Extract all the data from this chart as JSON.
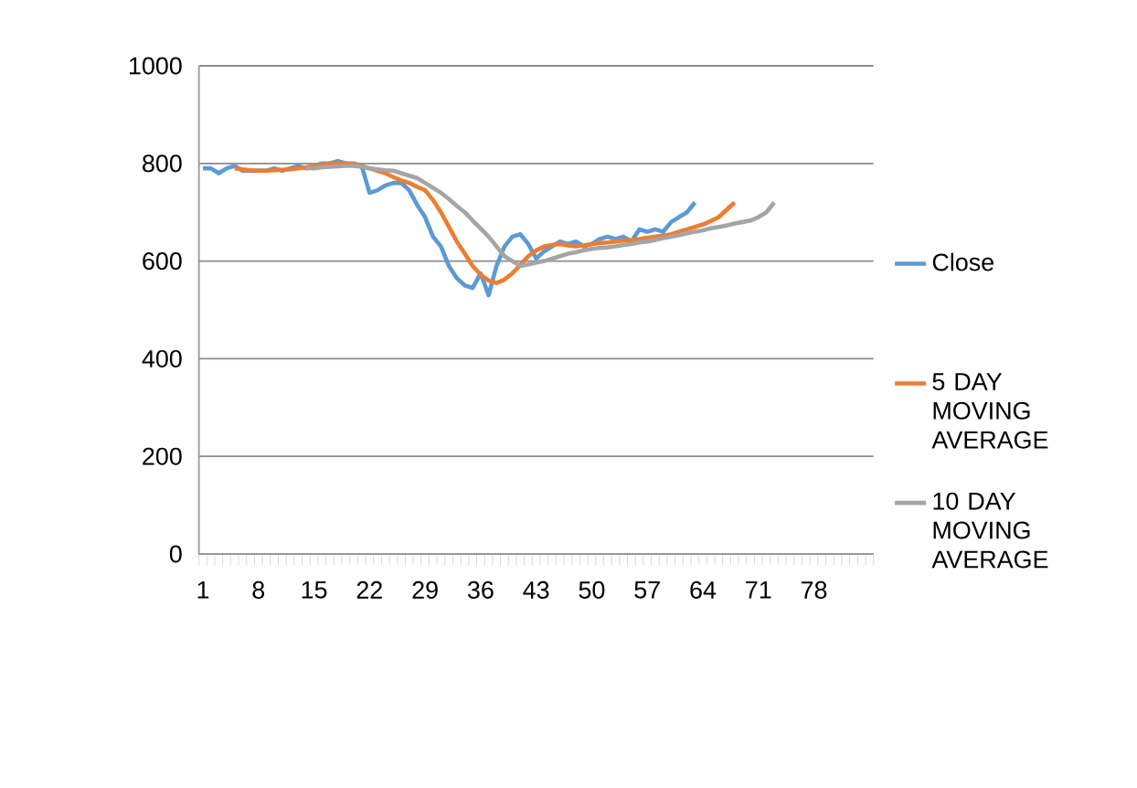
{
  "chart_data": {
    "type": "line",
    "legend": "right",
    "grid": "y",
    "marker": "none",
    "line_style": "solid",
    "categories": [
      "1",
      null,
      null,
      null,
      null,
      null,
      null,
      "8",
      null,
      null,
      null,
      null,
      null,
      null,
      "15",
      null,
      null,
      null,
      null,
      null,
      null,
      "22",
      null,
      null,
      null,
      null,
      null,
      null,
      "29",
      null,
      null,
      null,
      null,
      null,
      null,
      "36",
      null,
      null,
      null,
      null,
      null,
      null,
      "43",
      null,
      null,
      null,
      null,
      null,
      null,
      "50",
      null,
      null,
      null,
      null,
      null,
      null,
      "57",
      null,
      null,
      null,
      null,
      null,
      null,
      "64",
      null,
      null,
      null,
      null,
      null,
      null,
      "71",
      null,
      null,
      null,
      null,
      null,
      null,
      "78",
      null,
      null,
      null,
      null,
      null,
      null,
      null
    ],
    "ylim": [
      0,
      1000
    ],
    "yticks": [
      0,
      200,
      400,
      600,
      800,
      1000
    ],
    "series": [
      {
        "name": "Close",
        "color": "#5b9bd5",
        "values": [
          790,
          790,
          780,
          790,
          795,
          785,
          785,
          785,
          785,
          790,
          785,
          790,
          795,
          790,
          795,
          800,
          800,
          805,
          800,
          800,
          795,
          740,
          745,
          755,
          760,
          760,
          745,
          715,
          690,
          650,
          630,
          590,
          565,
          550,
          545,
          575,
          530,
          590,
          630,
          650,
          655,
          635,
          605,
          620,
          630,
          640,
          635,
          640,
          630,
          635,
          645,
          650,
          645,
          650,
          640,
          665,
          660,
          665,
          660,
          680,
          690,
          700,
          720,
          null,
          null,
          null,
          null,
          null,
          null,
          null,
          null,
          null,
          null,
          null,
          null,
          null,
          null,
          null,
          null,
          null,
          null,
          null,
          null,
          null,
          null
        ]
      },
      {
        "name": "5 DAY MOVING AVERAGE",
        "color": "#ed7d31",
        "values": [
          null,
          null,
          null,
          null,
          790,
          788,
          786,
          785,
          785,
          786,
          787,
          788,
          790,
          792,
          795,
          797,
          800,
          800,
          800,
          798,
          795,
          790,
          785,
          780,
          772,
          765,
          760,
          752,
          745,
          725,
          700,
          670,
          640,
          615,
          590,
          572,
          560,
          555,
          562,
          575,
          592,
          610,
          622,
          630,
          633,
          635,
          632,
          630,
          632,
          635,
          637,
          638,
          640,
          642,
          643,
          645,
          648,
          650,
          652,
          655,
          660,
          665,
          670,
          675,
          682,
          690,
          705,
          720,
          null,
          null,
          null,
          null,
          null,
          null,
          null,
          null,
          null,
          null,
          null,
          null,
          null,
          null,
          null,
          null,
          null
        ]
      },
      {
        "name": "10 DAY MOVING AVERAGE",
        "color": "#a5a5a5",
        "values": [
          null,
          null,
          null,
          null,
          null,
          null,
          null,
          null,
          null,
          null,
          null,
          null,
          null,
          790,
          790,
          792,
          793,
          794,
          795,
          795,
          793,
          790,
          788,
          786,
          785,
          780,
          775,
          770,
          760,
          750,
          740,
          727,
          713,
          700,
          683,
          667,
          650,
          630,
          610,
          600,
          590,
          593,
          597,
          600,
          605,
          610,
          615,
          618,
          622,
          625,
          627,
          628,
          630,
          633,
          635,
          638,
          640,
          643,
          647,
          650,
          653,
          657,
          660,
          663,
          667,
          670,
          673,
          677,
          680,
          683,
          690,
          700,
          720,
          null,
          null,
          null,
          null,
          null,
          null,
          null,
          null,
          null,
          null,
          null,
          null
        ]
      }
    ]
  }
}
